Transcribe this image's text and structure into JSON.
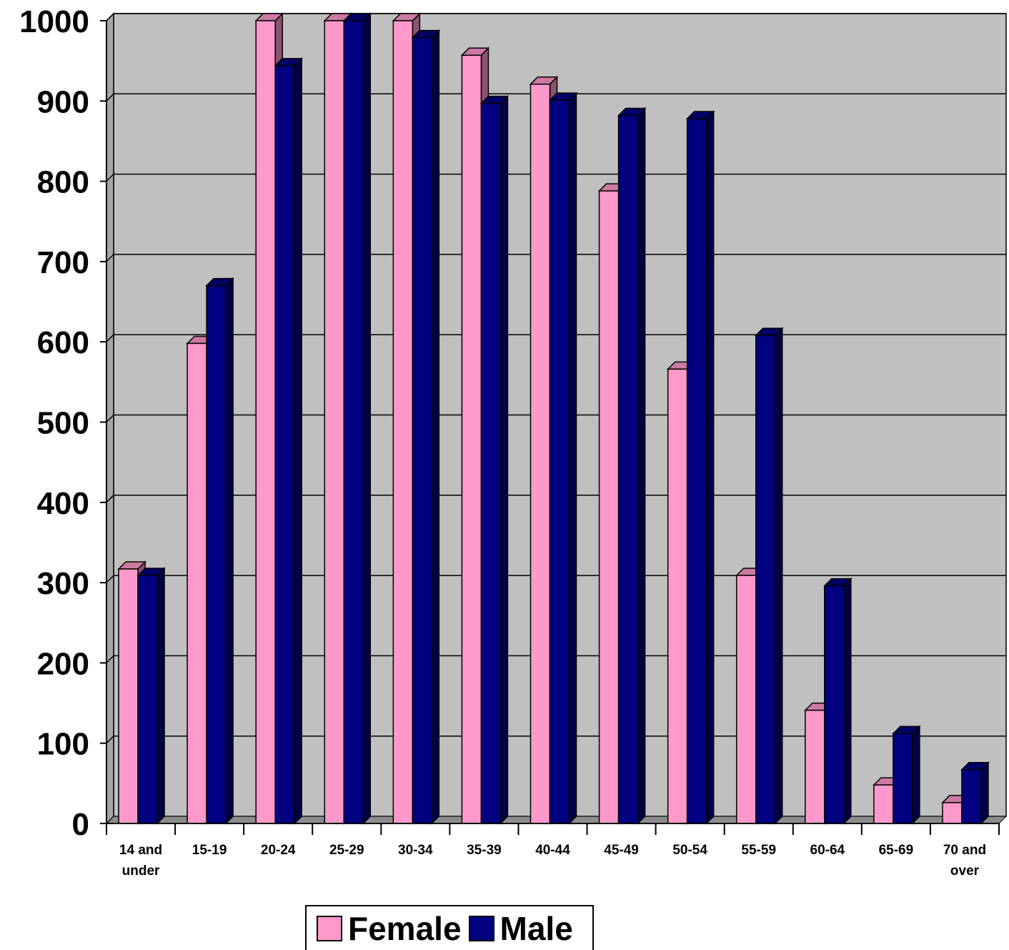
{
  "chart_data": {
    "type": "bar",
    "categories": [
      [
        "14 and",
        "under"
      ],
      [
        "15-19"
      ],
      [
        "20-24"
      ],
      [
        "25-29"
      ],
      [
        "30-34"
      ],
      [
        "35-39"
      ],
      [
        "40-44"
      ],
      [
        "45-49"
      ],
      [
        "50-54"
      ],
      [
        "55-59"
      ],
      [
        "60-64"
      ],
      [
        "65-69"
      ],
      [
        "70 and",
        "over"
      ]
    ],
    "series": [
      {
        "name": "Female",
        "color": "#ff99cc",
        "values": [
          317,
          598,
          1000,
          1000,
          1000,
          957,
          921,
          788,
          566,
          309,
          141,
          48,
          26
        ]
      },
      {
        "name": "Male",
        "color": "#000080",
        "values": [
          309,
          670,
          944,
          1000,
          979,
          897,
          901,
          882,
          878,
          608,
          296,
          112,
          67
        ]
      }
    ],
    "yticks": [
      "0",
      "100",
      "200",
      "300",
      "400",
      "500",
      "600",
      "700",
      "800",
      "900",
      "1000"
    ],
    "ylim": [
      0,
      1000
    ],
    "grid": true,
    "legend": "bottom",
    "plot_background": "#c0c0c0"
  }
}
